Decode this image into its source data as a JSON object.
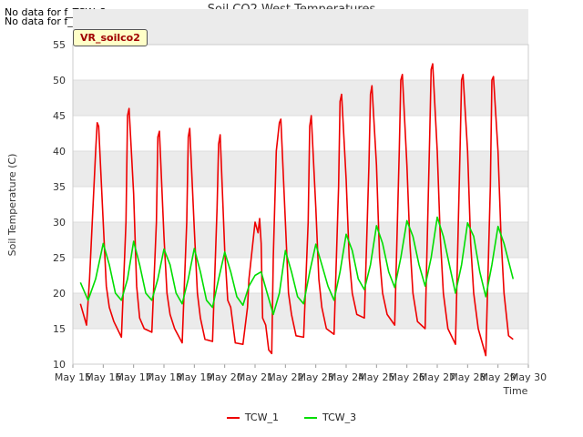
{
  "notices": [
    "No data for f_TCW_2",
    "No data for f_TCW_4"
  ],
  "site_tag": "VR_soilco2",
  "colors": {
    "TCW_1": "#ee0000",
    "TCW_3": "#00dd00",
    "band": "#ebebeb",
    "grid": "#dcdcdc"
  },
  "chart_data": {
    "type": "line",
    "title": "Soil CO2 West Temperatures",
    "xlabel": "Time",
    "ylabel": "Soil Temperature (C)",
    "xlim": [
      15,
      30
    ],
    "ylim": [
      10,
      55
    ],
    "x_ticks": [
      "May 15",
      "May 16",
      "May 17",
      "May 18",
      "May 19",
      "May 20",
      "May 21",
      "May 22",
      "May 23",
      "May 24",
      "May 25",
      "May 26",
      "May 27",
      "May 28",
      "May 29",
      "May 30"
    ],
    "y_ticks": [
      10,
      15,
      20,
      25,
      30,
      35,
      40,
      45,
      50,
      55
    ],
    "legend_position": "bottom-center",
    "series": [
      {
        "name": "TCW_1",
        "x": [
          15.25,
          15.45,
          15.55,
          15.75,
          15.8,
          15.85,
          16.0,
          16.1,
          16.2,
          16.35,
          16.6,
          16.75,
          16.8,
          16.85,
          17.0,
          17.1,
          17.2,
          17.35,
          17.6,
          17.75,
          17.8,
          17.85,
          18.0,
          18.1,
          18.2,
          18.35,
          18.6,
          18.75,
          18.8,
          18.85,
          19.0,
          19.1,
          19.2,
          19.35,
          19.6,
          19.75,
          19.8,
          19.85,
          20.0,
          20.1,
          20.2,
          20.35,
          20.6,
          20.75,
          20.8,
          20.85,
          21.0,
          21.1,
          21.15,
          21.2,
          21.25,
          21.35,
          21.45,
          21.55,
          21.6,
          21.7,
          21.8,
          21.85,
          22.0,
          22.1,
          22.2,
          22.35,
          22.6,
          22.75,
          22.8,
          22.85,
          23.0,
          23.1,
          23.2,
          23.35,
          23.6,
          23.75,
          23.8,
          23.85,
          24.0,
          24.1,
          24.2,
          24.35,
          24.6,
          24.75,
          24.8,
          24.85,
          25.0,
          25.1,
          25.2,
          25.35,
          25.6,
          25.75,
          25.8,
          25.85,
          26.0,
          26.1,
          26.2,
          26.35,
          26.6,
          26.75,
          26.8,
          26.85,
          27.0,
          27.1,
          27.2,
          27.35,
          27.6,
          27.75,
          27.8,
          27.85,
          28.0,
          28.1,
          28.2,
          28.35,
          28.6,
          28.75,
          28.8,
          28.85,
          29.0,
          29.1,
          29.2,
          29.35,
          29.5
        ],
        "y": [
          18.5,
          15.5,
          22,
          40,
          44,
          43.5,
          30,
          21,
          18,
          16,
          13.8,
          30,
          45,
          46,
          34,
          21,
          16.5,
          15,
          14.5,
          30,
          42,
          42.8,
          28,
          20,
          17,
          15,
          13,
          30,
          42,
          43.2,
          29,
          20,
          16.5,
          13.5,
          13.2,
          32,
          41,
          42.3,
          26,
          19,
          18,
          13,
          12.8,
          18,
          22,
          24,
          30,
          28.5,
          30.5,
          27,
          16.5,
          15.5,
          12,
          11.5,
          25,
          40,
          44,
          44.5,
          30,
          20,
          17,
          14,
          13.8,
          30,
          43.5,
          45,
          32,
          22,
          18,
          15,
          14.2,
          35,
          47,
          48,
          36,
          25,
          20,
          17,
          16.5,
          38,
          48,
          49.2,
          38,
          25,
          20,
          17,
          15.5,
          40,
          50,
          50.8,
          38,
          27,
          20,
          16,
          15,
          42,
          51.5,
          52.3,
          40,
          28,
          20,
          15,
          12.8,
          40,
          50,
          50.8,
          40,
          27,
          20,
          15,
          11.2,
          35,
          50,
          50.5,
          40,
          28,
          20,
          14,
          13.5
        ]
      },
      {
        "name": "TCW_3",
        "x": [
          15.25,
          15.5,
          15.75,
          16.0,
          16.2,
          16.4,
          16.6,
          16.8,
          17.0,
          17.2,
          17.4,
          17.6,
          17.8,
          18.0,
          18.2,
          18.4,
          18.6,
          18.8,
          19.0,
          19.2,
          19.4,
          19.6,
          19.8,
          20.0,
          20.2,
          20.4,
          20.6,
          20.8,
          21.0,
          21.2,
          21.4,
          21.6,
          21.8,
          22.0,
          22.2,
          22.4,
          22.6,
          22.8,
          23.0,
          23.2,
          23.4,
          23.6,
          23.8,
          24.0,
          24.2,
          24.4,
          24.6,
          24.8,
          25.0,
          25.2,
          25.4,
          25.6,
          25.8,
          26.0,
          26.2,
          26.4,
          26.6,
          26.8,
          27.0,
          27.2,
          27.4,
          27.6,
          27.8,
          28.0,
          28.2,
          28.4,
          28.6,
          28.8,
          29.0,
          29.2,
          29.5
        ],
        "y": [
          21.5,
          19,
          22,
          27,
          24,
          20,
          19,
          22,
          27.3,
          24,
          20,
          19,
          22,
          26.2,
          24,
          20,
          18.5,
          22,
          26.3,
          23,
          19,
          18,
          22,
          25.8,
          23,
          19.5,
          18.3,
          21,
          22.5,
          23,
          20,
          17,
          20,
          26,
          23,
          19.5,
          18.5,
          23,
          26.9,
          24,
          21,
          19,
          23,
          28.3,
          26,
          22,
          20.5,
          24,
          29.5,
          27,
          23,
          20.8,
          25,
          30.2,
          28,
          24,
          21,
          25,
          30.7,
          28,
          24,
          20,
          24,
          29.9,
          28,
          23,
          19.5,
          24,
          29.4,
          27,
          22
        ]
      }
    ]
  }
}
